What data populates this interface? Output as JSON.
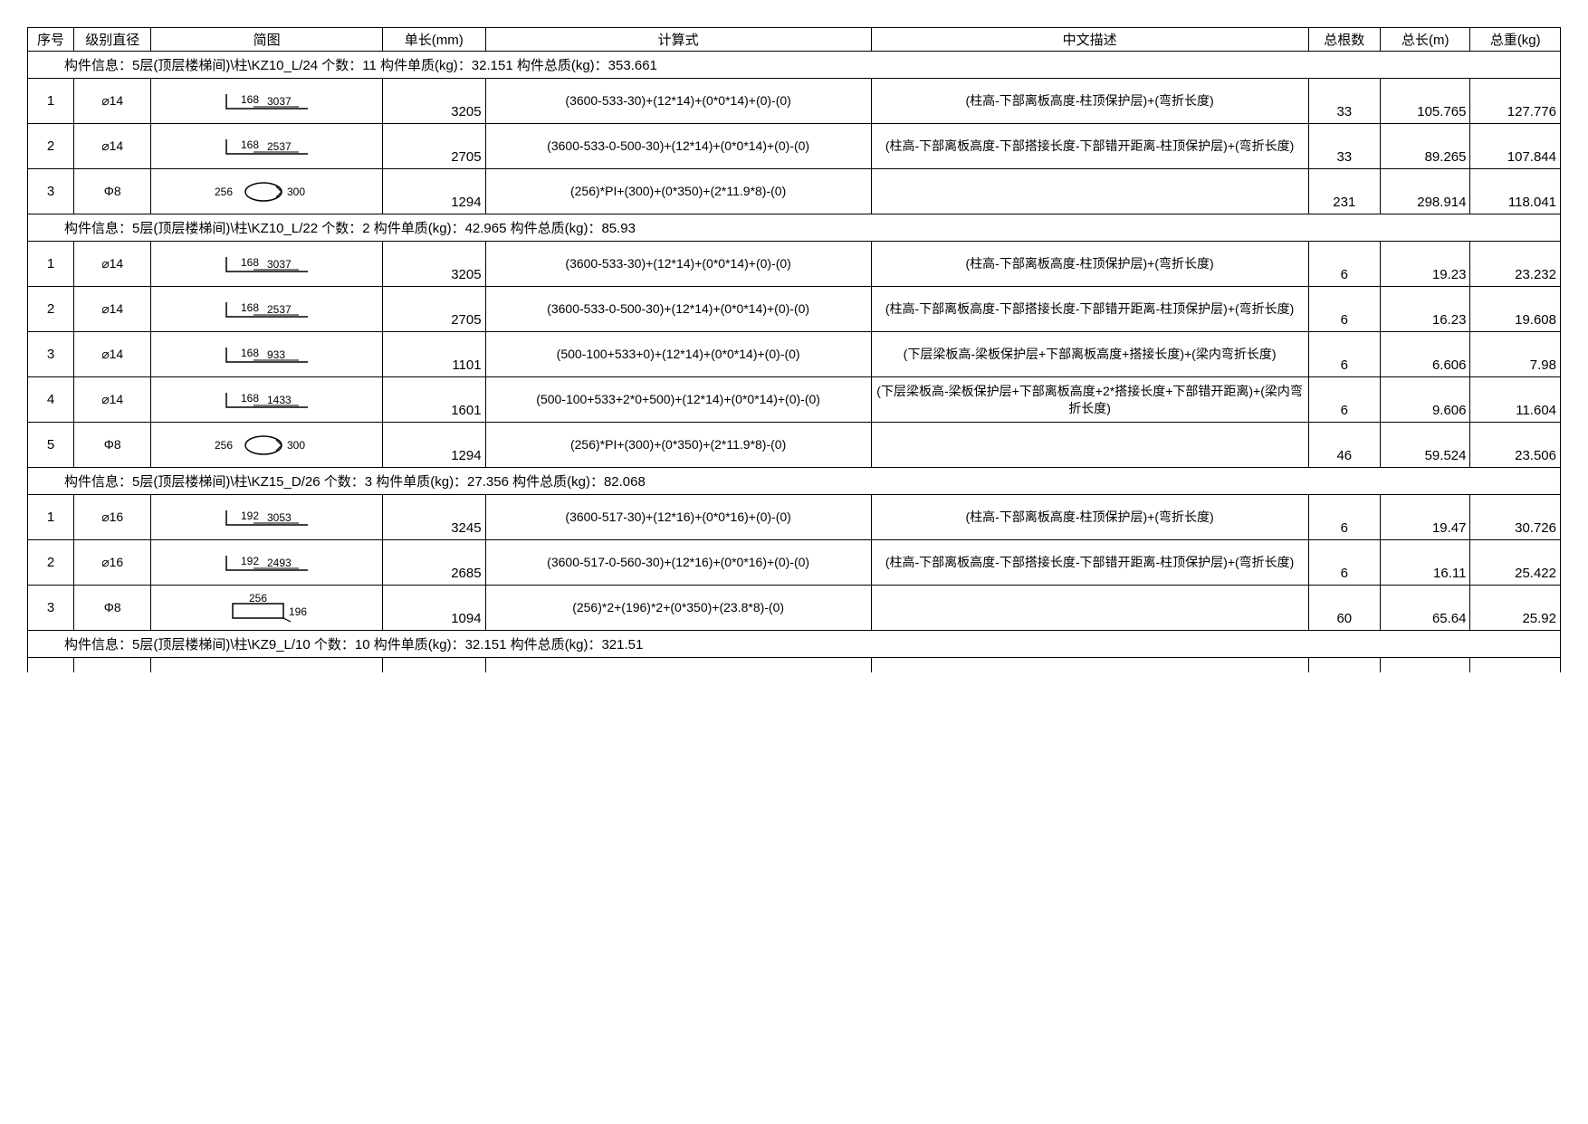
{
  "headers": {
    "seq": "序号",
    "diam": "级别直径",
    "diag": "简图",
    "len": "单长(mm)",
    "calc": "计算式",
    "desc": "中文描述",
    "count": "总根数",
    "totlen": "总长(m)",
    "totwt": "总重(kg)"
  },
  "groups": [
    {
      "title": "构件信息：5层(顶层楼梯间)\\柱\\KZ10_L/24 个数：11 构件单质(kg)：32.151 构件总质(kg)：353.661",
      "rows": [
        {
          "seq": "1",
          "diam": "⌀14",
          "diag": {
            "type": "L",
            "a": "168",
            "b": "3037"
          },
          "len": "3205",
          "calc": "(3600-533-30)+(12*14)+(0*0*14)+(0)-(0)",
          "desc": "(柱高-下部离板高度-柱顶保护层)+(弯折长度)",
          "count": "33",
          "totlen": "105.765",
          "totwt": "127.776"
        },
        {
          "seq": "2",
          "diam": "⌀14",
          "diag": {
            "type": "L",
            "a": "168",
            "b": "2537"
          },
          "len": "2705",
          "calc": "(3600-533-0-500-30)+(12*14)+(0*0*14)+(0)-(0)",
          "desc": "(柱高-下部离板高度-下部搭接长度-下部错开距离-柱顶保护层)+(弯折长度)",
          "count": "33",
          "totlen": "89.265",
          "totwt": "107.844"
        },
        {
          "seq": "3",
          "diam": "Φ8",
          "diag": {
            "type": "O",
            "a": "256",
            "b": "300"
          },
          "len": "1294",
          "calc": "(256)*PI+(300)+(0*350)+(2*11.9*8)-(0)",
          "desc": "",
          "count": "231",
          "totlen": "298.914",
          "totwt": "118.041"
        }
      ]
    },
    {
      "title": "构件信息：5层(顶层楼梯间)\\柱\\KZ10_L/22 个数：2 构件单质(kg)：42.965 构件总质(kg)：85.93",
      "rows": [
        {
          "seq": "1",
          "diam": "⌀14",
          "diag": {
            "type": "L",
            "a": "168",
            "b": "3037"
          },
          "len": "3205",
          "calc": "(3600-533-30)+(12*14)+(0*0*14)+(0)-(0)",
          "desc": "(柱高-下部离板高度-柱顶保护层)+(弯折长度)",
          "count": "6",
          "totlen": "19.23",
          "totwt": "23.232"
        },
        {
          "seq": "2",
          "diam": "⌀14",
          "diag": {
            "type": "L",
            "a": "168",
            "b": "2537"
          },
          "len": "2705",
          "calc": "(3600-533-0-500-30)+(12*14)+(0*0*14)+(0)-(0)",
          "desc": "(柱高-下部离板高度-下部搭接长度-下部错开距离-柱顶保护层)+(弯折长度)",
          "count": "6",
          "totlen": "16.23",
          "totwt": "19.608"
        },
        {
          "seq": "3",
          "diam": "⌀14",
          "diag": {
            "type": "L",
            "a": "168",
            "b": "933"
          },
          "len": "1101",
          "calc": "(500-100+533+0)+(12*14)+(0*0*14)+(0)-(0)",
          "desc": "(下层梁板高-梁板保护层+下部离板高度+搭接长度)+(梁内弯折长度)",
          "count": "6",
          "totlen": "6.606",
          "totwt": "7.98"
        },
        {
          "seq": "4",
          "diam": "⌀14",
          "diag": {
            "type": "L",
            "a": "168",
            "b": "1433"
          },
          "len": "1601",
          "calc": "(500-100+533+2*0+500)+(12*14)+(0*0*14)+(0)-(0)",
          "desc": "(下层梁板高-梁板保护层+下部离板高度+2*搭接长度+下部错开距离)+(梁内弯折长度)",
          "count": "6",
          "totlen": "9.606",
          "totwt": "11.604"
        },
        {
          "seq": "5",
          "diam": "Φ8",
          "diag": {
            "type": "O",
            "a": "256",
            "b": "300"
          },
          "len": "1294",
          "calc": "(256)*PI+(300)+(0*350)+(2*11.9*8)-(0)",
          "desc": "",
          "count": "46",
          "totlen": "59.524",
          "totwt": "23.506"
        }
      ]
    },
    {
      "title": "构件信息：5层(顶层楼梯间)\\柱\\KZ15_D/26 个数：3 构件单质(kg)：27.356 构件总质(kg)：82.068",
      "rows": [
        {
          "seq": "1",
          "diam": "⌀16",
          "diag": {
            "type": "L",
            "a": "192",
            "b": "3053"
          },
          "len": "3245",
          "calc": "(3600-517-30)+(12*16)+(0*0*16)+(0)-(0)",
          "desc": "(柱高-下部离板高度-柱顶保护层)+(弯折长度)",
          "count": "6",
          "totlen": "19.47",
          "totwt": "30.726"
        },
        {
          "seq": "2",
          "diam": "⌀16",
          "diag": {
            "type": "L",
            "a": "192",
            "b": "2493"
          },
          "len": "2685",
          "calc": "(3600-517-0-560-30)+(12*16)+(0*0*16)+(0)-(0)",
          "desc": "(柱高-下部离板高度-下部搭接长度-下部错开距离-柱顶保护层)+(弯折长度)",
          "count": "6",
          "totlen": "16.11",
          "totwt": "25.422"
        },
        {
          "seq": "3",
          "diam": "Φ8",
          "diag": {
            "type": "R",
            "a": "256",
            "b": "196"
          },
          "len": "1094",
          "calc": "(256)*2+(196)*2+(0*350)+(23.8*8)-(0)",
          "desc": "",
          "count": "60",
          "totlen": "65.64",
          "totwt": "25.92"
        }
      ]
    },
    {
      "title": "构件信息：5层(顶层楼梯间)\\柱\\KZ9_L/10 个数：10 构件单质(kg)：32.151 构件总质(kg)：321.51",
      "rows": []
    }
  ]
}
